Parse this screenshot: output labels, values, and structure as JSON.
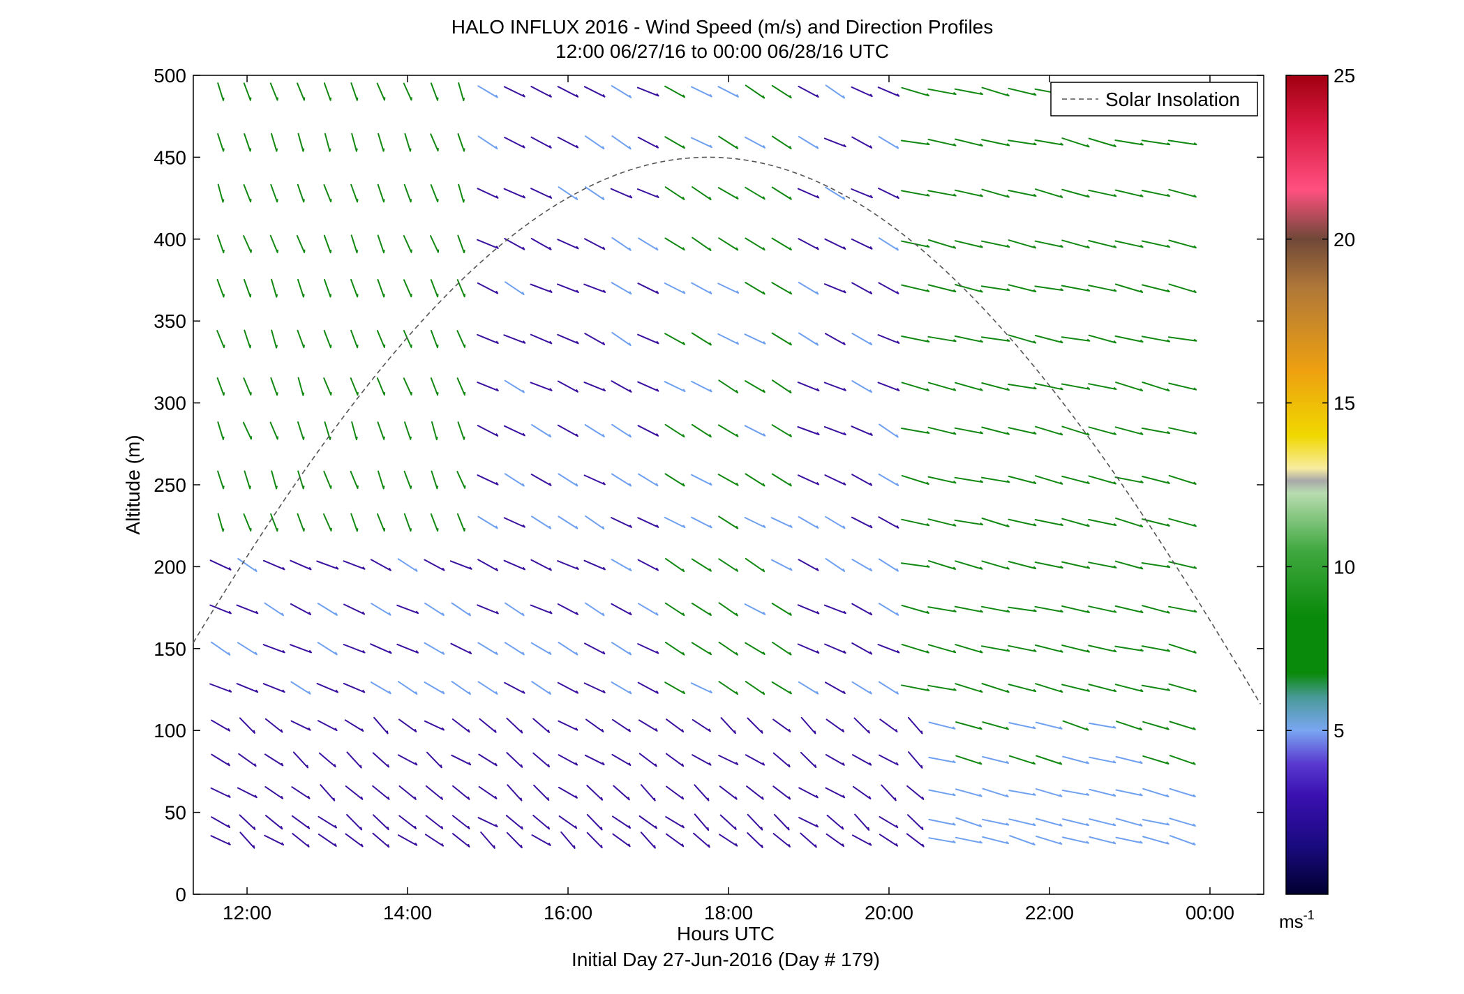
{
  "chart_data": {
    "type": "quiver",
    "title": "HALO INFLUX 2016 - Wind Speed (m/s) and Direction Profiles",
    "subtitle": "12:00 06/27/16 to 00:00 06/28/16  UTC",
    "xlabel": "Hours UTC",
    "xlabel2": "Initial Day 27-Jun-2016 (Day # 179)",
    "ylabel": "Altitude (m)",
    "xlim_hours": [
      11.33,
      24.67
    ],
    "ylim": [
      0,
      500
    ],
    "xticks": [
      12,
      14,
      16,
      18,
      20,
      22,
      24
    ],
    "xtick_labels": [
      "12:00",
      "14:00",
      "16:00",
      "18:00",
      "20:00",
      "22:00",
      "00:00"
    ],
    "yticks": [
      0,
      50,
      100,
      150,
      200,
      250,
      300,
      350,
      400,
      450,
      500
    ],
    "ytick_labels": [
      "0",
      "50",
      "100",
      "150",
      "200",
      "250",
      "300",
      "350",
      "400",
      "450",
      "500"
    ],
    "altitudes": [
      33,
      44,
      62,
      82,
      103,
      126,
      150,
      174,
      201,
      227,
      253,
      283,
      310,
      339,
      370,
      397,
      428,
      459,
      490
    ],
    "time_start_hour": 11.67,
    "time_step_hour": 0.333,
    "time_count": 37,
    "colorbar": {
      "min": 0,
      "max": 25,
      "ticks": [
        5,
        10,
        15,
        20,
        25
      ],
      "tick_labels": [
        "5",
        "10",
        "15",
        "20",
        "25"
      ],
      "unit_label": "ms",
      "unit_exp": "-1"
    },
    "legend": {
      "entries": [
        "Solar Insolation"
      ],
      "placement": "top-right"
    },
    "solar_insolation": {
      "style": "dashed",
      "color": "#555555",
      "peak_hour": 17.75,
      "peak_altitude": 450,
      "daylength_hours": 16.5
    },
    "colors": {
      "low": "#3a10a0",
      "mid": "#6fa0f0",
      "high": "#118811"
    }
  }
}
